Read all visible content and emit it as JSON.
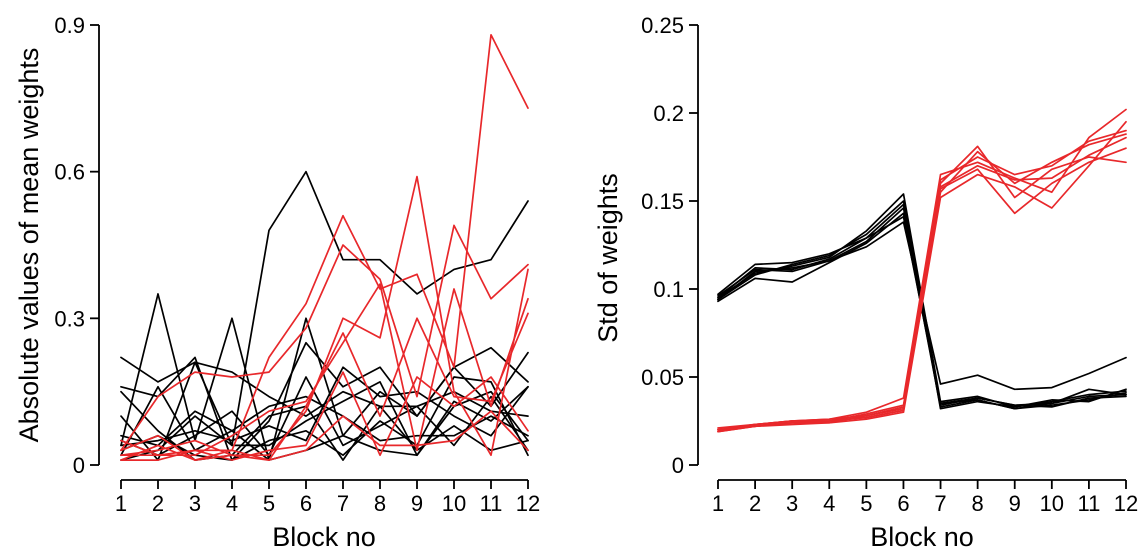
{
  "colors": {
    "black_series": "#000000",
    "red_series": "#e8282b"
  },
  "chart_data": [
    {
      "type": "line",
      "xlabel": "Block no",
      "ylabel": "Absolute values of mean weights",
      "x": [
        1,
        2,
        3,
        4,
        5,
        6,
        7,
        8,
        9,
        10,
        11,
        12
      ],
      "xticks": [
        "1",
        "2",
        "3",
        "4",
        "5",
        "6",
        "7",
        "8",
        "9",
        "10",
        "11",
        "12"
      ],
      "ylim": [
        0,
        0.9
      ],
      "yticks": [
        0,
        0.3,
        0.6,
        0.9
      ],
      "ytick_labels": [
        "0",
        "0.3",
        "0.6",
        "0.9"
      ],
      "grid": false,
      "series": [
        {
          "group": "black",
          "values": [
            0.22,
            0.17,
            0.21,
            0.04,
            0.48,
            0.6,
            0.42,
            0.42,
            0.35,
            0.4,
            0.42,
            0.54
          ]
        },
        {
          "group": "black",
          "values": [
            0.04,
            0.35,
            0.05,
            0.3,
            0.01,
            0.3,
            0.06,
            0.15,
            0.1,
            0.2,
            0.12,
            0.23
          ]
        },
        {
          "group": "black",
          "values": [
            0.16,
            0.14,
            0.22,
            0.01,
            0.09,
            0.25,
            0.16,
            0.2,
            0.1,
            0.2,
            0.24,
            0.17
          ]
        },
        {
          "group": "black",
          "values": [
            0.1,
            0.01,
            0.21,
            0.19,
            0.14,
            0.1,
            0.15,
            0.12,
            0.12,
            0.15,
            0.11,
            0.1
          ]
        },
        {
          "group": "black",
          "values": [
            0.02,
            0.16,
            0.03,
            0.07,
            0.12,
            0.14,
            0.1,
            0.05,
            0.06,
            0.06,
            0.1,
            0.06
          ]
        },
        {
          "group": "black",
          "values": [
            0.05,
            0.02,
            0.06,
            0.11,
            0.02,
            0.18,
            0.04,
            0.08,
            0.12,
            0.04,
            0.14,
            0.03
          ]
        },
        {
          "group": "black",
          "values": [
            0.04,
            0.05,
            0.07,
            0.05,
            0.08,
            0.05,
            0.2,
            0.14,
            0.15,
            0.1,
            0.06,
            0.16
          ]
        },
        {
          "group": "black",
          "values": [
            0.01,
            0.03,
            0.1,
            0.04,
            0.04,
            0.09,
            0.13,
            0.17,
            0.02,
            0.12,
            0.15,
            0.05
          ]
        },
        {
          "group": "black",
          "values": [
            0.03,
            0.06,
            0.02,
            0.01,
            0.05,
            0.07,
            0.02,
            0.09,
            0.04,
            0.18,
            0.17,
            0.02
          ]
        },
        {
          "group": "black",
          "values": [
            0.15,
            0.07,
            0.01,
            0.02,
            0.1,
            0.12,
            0.01,
            0.12,
            0.03,
            0.08,
            0.03,
            0.05
          ]
        },
        {
          "group": "black",
          "values": [
            0.06,
            0.04,
            0.11,
            0.07,
            0.01,
            0.03,
            0.06,
            0.03,
            0.02,
            0.13,
            0.09,
            0.16
          ]
        },
        {
          "group": "red",
          "values": [
            0.01,
            0.01,
            0.03,
            0.03,
            0.22,
            0.33,
            0.51,
            0.36,
            0.39,
            0.2,
            0.88,
            0.73
          ]
        },
        {
          "group": "red",
          "values": [
            0.03,
            0.14,
            0.19,
            0.18,
            0.19,
            0.28,
            0.45,
            0.38,
            0.14,
            0.49,
            0.34,
            0.41
          ]
        },
        {
          "group": "red",
          "values": [
            0.02,
            0.03,
            0.05,
            0.02,
            0.02,
            0.11,
            0.3,
            0.26,
            0.59,
            0.15,
            0.02,
            0.4
          ]
        },
        {
          "group": "red",
          "values": [
            0.05,
            0.02,
            0.02,
            0.06,
            0.11,
            0.13,
            0.25,
            0.37,
            0.03,
            0.36,
            0.12,
            0.34
          ]
        },
        {
          "group": "red",
          "values": [
            0.01,
            0.04,
            0.01,
            0.03,
            0.01,
            0.12,
            0.27,
            0.1,
            0.3,
            0.14,
            0.13,
            0.31
          ]
        },
        {
          "group": "red",
          "values": [
            0.02,
            0.02,
            0.03,
            0.01,
            0.03,
            0.04,
            0.19,
            0.02,
            0.18,
            0.12,
            0.18,
            0.07
          ]
        },
        {
          "group": "red",
          "values": [
            0.03,
            0.06,
            0.01,
            0.02,
            0.01,
            0.03,
            0.1,
            0.04,
            0.04,
            0.05,
            0.11,
            0.03
          ]
        }
      ]
    },
    {
      "type": "line",
      "xlabel": "Block no",
      "ylabel": "Std of weights",
      "x": [
        1,
        2,
        3,
        4,
        5,
        6,
        7,
        8,
        9,
        10,
        11,
        12
      ],
      "xticks": [
        "1",
        "2",
        "3",
        "4",
        "5",
        "6",
        "7",
        "8",
        "9",
        "10",
        "11",
        "12"
      ],
      "ylim": [
        0,
        0.25
      ],
      "yticks": [
        0,
        0.05,
        0.1,
        0.15,
        0.2,
        0.25
      ],
      "ytick_labels": [
        "0",
        "0.05",
        "0.1",
        "0.15",
        "0.2",
        "0.25"
      ],
      "grid": false,
      "series": [
        {
          "group": "black",
          "values": [
            0.094,
            0.11,
            0.112,
            0.116,
            0.124,
            0.138,
            0.046,
            0.051,
            0.043,
            0.044,
            0.052,
            0.061
          ]
        },
        {
          "group": "black",
          "values": [
            0.097,
            0.114,
            0.115,
            0.12,
            0.129,
            0.148,
            0.035,
            0.038,
            0.034,
            0.035,
            0.043,
            0.04
          ]
        },
        {
          "group": "black",
          "values": [
            0.093,
            0.106,
            0.104,
            0.115,
            0.126,
            0.143,
            0.033,
            0.037,
            0.032,
            0.034,
            0.037,
            0.041
          ]
        },
        {
          "group": "black",
          "values": [
            0.095,
            0.109,
            0.113,
            0.118,
            0.133,
            0.154,
            0.036,
            0.039,
            0.033,
            0.036,
            0.04,
            0.042
          ]
        },
        {
          "group": "black",
          "values": [
            0.096,
            0.111,
            0.11,
            0.116,
            0.127,
            0.146,
            0.034,
            0.038,
            0.034,
            0.033,
            0.038,
            0.039
          ]
        },
        {
          "group": "black",
          "values": [
            0.094,
            0.108,
            0.114,
            0.119,
            0.131,
            0.15,
            0.032,
            0.036,
            0.033,
            0.037,
            0.036,
            0.043
          ]
        },
        {
          "group": "black",
          "values": [
            0.095,
            0.112,
            0.111,
            0.117,
            0.129,
            0.141,
            0.035,
            0.037,
            0.032,
            0.035,
            0.039,
            0.04
          ]
        },
        {
          "group": "red",
          "values": [
            0.02,
            0.023,
            0.025,
            0.026,
            0.03,
            0.038,
            0.165,
            0.172,
            0.163,
            0.155,
            0.186,
            0.202
          ]
        },
        {
          "group": "red",
          "values": [
            0.019,
            0.022,
            0.024,
            0.024,
            0.028,
            0.032,
            0.16,
            0.181,
            0.152,
            0.168,
            0.175,
            0.172
          ]
        },
        {
          "group": "red",
          "values": [
            0.02,
            0.023,
            0.025,
            0.025,
            0.027,
            0.031,
            0.157,
            0.168,
            0.143,
            0.16,
            0.172,
            0.18
          ]
        },
        {
          "group": "red",
          "values": [
            0.019,
            0.022,
            0.023,
            0.024,
            0.026,
            0.03,
            0.152,
            0.165,
            0.158,
            0.146,
            0.17,
            0.195
          ]
        },
        {
          "group": "red",
          "values": [
            0.02,
            0.022,
            0.024,
            0.025,
            0.029,
            0.034,
            0.155,
            0.178,
            0.16,
            0.172,
            0.182,
            0.188
          ]
        },
        {
          "group": "red",
          "values": [
            0.021,
            0.023,
            0.025,
            0.026,
            0.028,
            0.033,
            0.162,
            0.175,
            0.165,
            0.17,
            0.184,
            0.19
          ]
        },
        {
          "group": "red",
          "values": [
            0.02,
            0.022,
            0.024,
            0.025,
            0.027,
            0.031,
            0.158,
            0.17,
            0.162,
            0.163,
            0.176,
            0.186
          ]
        }
      ]
    }
  ]
}
